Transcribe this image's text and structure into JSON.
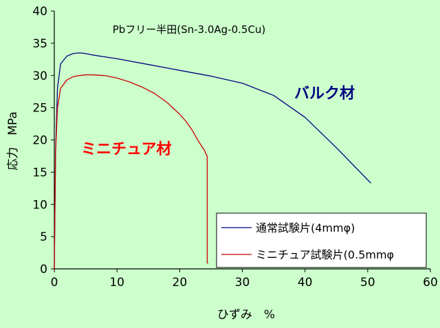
{
  "chart_data": {
    "type": "line",
    "title": "Pbフリー半田(Sn-3.0Ag-0.5Cu)",
    "xlabel": "ひずみ　%",
    "ylabel": "応力　MPa",
    "xlim": [
      0,
      60
    ],
    "ylim": [
      0,
      40
    ],
    "x_ticks": [
      "0",
      "10",
      "20",
      "30",
      "40",
      "50",
      "60"
    ],
    "y_ticks": [
      "0",
      "5",
      "10",
      "15",
      "20",
      "25",
      "30",
      "35",
      "40"
    ],
    "grid": false,
    "legend_position": "bottom-right",
    "series": [
      {
        "name": "通常試験片(4mmφ)",
        "color": "#000080",
        "x": [
          0,
          0.2,
          0.5,
          1,
          2,
          3,
          4,
          5,
          6,
          8,
          10,
          15,
          20,
          25,
          30,
          35,
          40,
          45,
          50.5
        ],
        "y": [
          0,
          18,
          28,
          31.8,
          33,
          33.4,
          33.5,
          33.4,
          33.2,
          32.9,
          32.6,
          31.7,
          30.8,
          29.9,
          28.8,
          26.9,
          23.5,
          18.8,
          13.3
        ]
      },
      {
        "name": "ミニチュア試験片(0.5mmφ",
        "color": "#cc0000",
        "x": [
          0,
          0.2,
          0.5,
          1,
          2,
          3,
          4,
          5,
          6,
          8,
          10,
          12,
          14,
          16,
          18,
          20,
          21,
          22,
          23,
          24,
          24.2,
          24.4,
          24.4,
          24.5
        ],
        "y": [
          0,
          18,
          25,
          28,
          29.3,
          29.8,
          30,
          30.1,
          30.1,
          30,
          29.6,
          29,
          28.2,
          27.2,
          25.8,
          24,
          22.9,
          21.5,
          19.8,
          18.3,
          17.8,
          17.5,
          1,
          0.8
        ]
      }
    ],
    "annotations": [
      {
        "text": "バルク材",
        "color": "#000080"
      },
      {
        "text": "ミニチュア材",
        "color": "#ff0000"
      }
    ]
  }
}
